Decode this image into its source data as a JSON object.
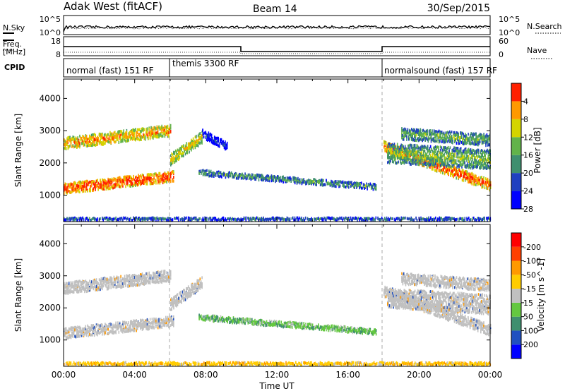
{
  "header": {
    "station": "Adak West (fitACF)",
    "beam": "Beam 14",
    "date": "30/Sep/2015"
  },
  "noise_panel": {
    "left_label": "N.Sky",
    "right_label": "N.Search",
    "left_ticks": [
      "10^5",
      "10^0"
    ],
    "right_ticks": [
      "10^5",
      "10^0"
    ]
  },
  "freq_panel": {
    "left_label_top": "Freq.",
    "left_label_unit": "[MHz]",
    "right_label": "Nave",
    "left_ticks": [
      "18",
      "8"
    ],
    "right_ticks": [
      "60",
      "0"
    ]
  },
  "cpid": {
    "label": "CPID",
    "modes": [
      {
        "name": "normal (fast) 151 RF",
        "start_hour": 0,
        "end_hour": 6
      },
      {
        "name": "themis 3300 RF",
        "start_hour": 6,
        "end_hour": 18
      },
      {
        "name": "normalsound (fast) 157 RF",
        "start_hour": 18,
        "end_hour": 24
      }
    ]
  },
  "chart_data": [
    {
      "type": "heatmap",
      "title": "",
      "xlabel": "",
      "ylabel": "Slant Range [km]",
      "xlim_hours": [
        0,
        24
      ],
      "ylim_km": [
        180,
        4600
      ],
      "yticks": [
        "1000",
        "2000",
        "3000",
        "4000"
      ],
      "colorbar_label": "Power [dB]",
      "colorbar_ticks": [
        "4",
        "8",
        "12",
        "16",
        "20",
        "24",
        "28"
      ],
      "colorbar_colors": [
        "#0000ff",
        "#2040c0",
        "#3f8f6f",
        "#62b34a",
        "#d4d400",
        "#ff9900",
        "#ff2000"
      ],
      "scatter_bands": [
        {
          "h0": 0.0,
          "h1": 6.2,
          "r_center_start": 1200,
          "r_center_end": 1580,
          "width": 320,
          "level": 0.95
        },
        {
          "h0": 0.0,
          "h1": 6.0,
          "r_center_start": 2600,
          "r_center_end": 3000,
          "width": 350,
          "level": 0.8
        },
        {
          "h0": 6.0,
          "h1": 7.8,
          "r_center_start": 2100,
          "r_center_end": 2800,
          "width": 350,
          "level": 0.7
        },
        {
          "h0": 7.8,
          "h1": 9.2,
          "r_center_start": 2900,
          "r_center_end": 2500,
          "width": 250,
          "level": 0.2
        },
        {
          "h0": 7.6,
          "h1": 17.6,
          "r_center_start": 1700,
          "r_center_end": 1250,
          "width": 170,
          "level": 0.45
        },
        {
          "h0": 18.0,
          "h1": 24.0,
          "r_center_start": 2500,
          "r_center_end": 1300,
          "width": 330,
          "level": 0.9
        },
        {
          "h0": 18.2,
          "h1": 24.0,
          "r_center_start": 2300,
          "r_center_end": 2100,
          "width": 600,
          "level": 0.55
        },
        {
          "h0": 19.0,
          "h1": 24.0,
          "r_center_start": 2900,
          "r_center_end": 2700,
          "width": 350,
          "level": 0.5
        },
        {
          "h0": 0.0,
          "h1": 24.0,
          "r_center_start": 260,
          "r_center_end": 260,
          "width": 80,
          "level": 0.35
        }
      ]
    },
    {
      "type": "heatmap",
      "title": "",
      "xlabel": "Time UT",
      "ylabel": "Slant Range [km]",
      "xlim_hours": [
        0,
        24
      ],
      "ylim_km": [
        180,
        4600
      ],
      "xticks": [
        "00:00",
        "04:00",
        "08:00",
        "12:00",
        "16:00",
        "20:00",
        "00:00"
      ],
      "yticks": [
        "1000",
        "2000",
        "3000",
        "4000"
      ],
      "colorbar_label": "Velocity [m s^-1]",
      "colorbar_ticks": [
        "200",
        "100",
        "50",
        "15",
        "-15",
        "-50",
        "-100",
        "-200"
      ],
      "colorbar_colors": [
        "#0000ff",
        "#2050c0",
        "#3f8f6f",
        "#64c840",
        "#c0c0c0",
        "#ffcc00",
        "#ff9900",
        "#ff4000",
        "#ff0000"
      ],
      "scatter_bands": [
        {
          "h0": 0.0,
          "h1": 6.2,
          "r_center_start": 1200,
          "r_center_end": 1580,
          "width": 320,
          "level": "ground"
        },
        {
          "h0": 0.0,
          "h1": 6.0,
          "r_center_start": 2600,
          "r_center_end": 3000,
          "width": 350,
          "level": "ground"
        },
        {
          "h0": 6.0,
          "h1": 7.8,
          "r_center_start": 2100,
          "r_center_end": 2800,
          "width": 350,
          "level": "ground"
        },
        {
          "h0": 7.6,
          "h1": 17.6,
          "r_center_start": 1700,
          "r_center_end": 1250,
          "width": 170,
          "level": "green"
        },
        {
          "h0": 18.0,
          "h1": 24.0,
          "r_center_start": 2500,
          "r_center_end": 1300,
          "width": 330,
          "level": "ground"
        },
        {
          "h0": 18.2,
          "h1": 24.0,
          "r_center_start": 2300,
          "r_center_end": 2100,
          "width": 600,
          "level": "ground"
        },
        {
          "h0": 19.0,
          "h1": 24.0,
          "r_center_start": 2900,
          "r_center_end": 2700,
          "width": 350,
          "level": "ground"
        },
        {
          "h0": 0.0,
          "h1": 24.0,
          "r_center_start": 260,
          "r_center_end": 260,
          "width": 80,
          "level": "orange"
        }
      ]
    }
  ]
}
